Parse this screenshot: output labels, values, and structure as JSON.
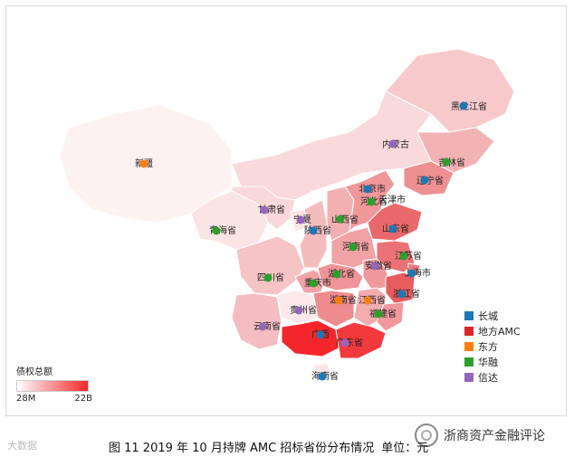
{
  "legend": {
    "title": "",
    "items": [
      {
        "label": "长城",
        "color": "#1f77b4"
      },
      {
        "label": "地方AMC",
        "color": "#d62728"
      },
      {
        "label": "东方",
        "color": "#ff7f0e"
      },
      {
        "label": "华融",
        "color": "#2ca02c"
      },
      {
        "label": "信达",
        "color": "#9467bd"
      }
    ]
  },
  "color_scale": {
    "title": "债权总额",
    "min_label": "28M",
    "max_label": "22B",
    "low_color": "#ffffff",
    "high_color": "#f5272a"
  },
  "provinces": [
    {
      "name": "黑龙江省"
    },
    {
      "name": "吉林省"
    },
    {
      "name": "辽宁省"
    },
    {
      "name": "内蒙古"
    },
    {
      "name": "新疆"
    },
    {
      "name": "甘肃省"
    },
    {
      "name": "宁夏"
    },
    {
      "name": "北京市"
    },
    {
      "name": "河北省"
    },
    {
      "name": "天津市"
    },
    {
      "name": "山西省"
    },
    {
      "name": "陕西省"
    },
    {
      "name": "青海省"
    },
    {
      "name": "山东省"
    },
    {
      "name": "河南省"
    },
    {
      "name": "江苏省"
    },
    {
      "name": "安徽省"
    },
    {
      "name": "上海市"
    },
    {
      "name": "四川省"
    },
    {
      "name": "重庆市"
    },
    {
      "name": "湖北省"
    },
    {
      "name": "浙江省"
    },
    {
      "name": "湖南省"
    },
    {
      "name": "江西省"
    },
    {
      "name": "贵州省"
    },
    {
      "name": "福建省"
    },
    {
      "name": "云南省"
    },
    {
      "name": "广西"
    },
    {
      "name": "广东省"
    },
    {
      "name": "海南省"
    }
  ],
  "caption": {
    "text": "图 11 2019 年 10 月持牌 AMC 招标省份分布情况",
    "unit": "单位：元"
  },
  "watermark_left": "大数据",
  "watermark_right": "浙商资产金融评论"
}
